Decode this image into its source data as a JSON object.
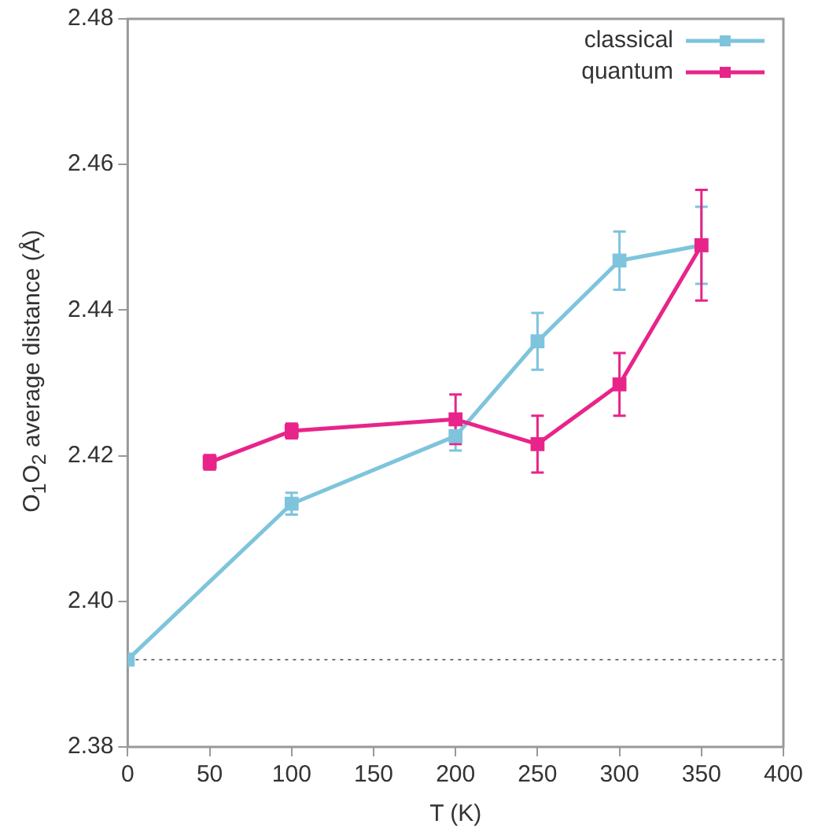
{
  "chart_data": {
    "type": "line",
    "xlabel": "T (K)",
    "ylabel": "O$_{1}$O$_{2}$ average distance (Å)",
    "xlim": [
      0,
      400
    ],
    "xticks": [
      0,
      50,
      100,
      150,
      200,
      250,
      300,
      350,
      400
    ],
    "ylim": [
      2.38,
      2.48
    ],
    "yticks": [
      {
        "value": 2.38,
        "label": "2.38"
      },
      {
        "value": 2.4,
        "label": "2.40"
      },
      {
        "value": 2.42,
        "label": "2.42"
      },
      {
        "value": 2.44,
        "label": "2.44"
      },
      {
        "value": 2.46,
        "label": "2.46"
      },
      {
        "value": 2.48,
        "label": "2.48"
      }
    ],
    "grid": false,
    "legend": "top right",
    "marker": "square",
    "ref_lines": [
      {
        "axis": "y",
        "value": 2.392,
        "color": "#777777",
        "line_style": "dotted"
      }
    ],
    "series": [
      {
        "name": "classical",
        "color": "#7ec4dc",
        "x": [
          0,
          100,
          200,
          250,
          300,
          350
        ],
        "values": [
          2.392,
          2.4134,
          2.4227,
          2.4357,
          2.4468,
          2.4489
        ],
        "errors": [
          null,
          0.0015,
          0.002,
          0.0039,
          0.004,
          0.0053
        ]
      },
      {
        "name": "quantum",
        "color": "#e8248a",
        "x": [
          50,
          100,
          200,
          250,
          300,
          350
        ],
        "values": [
          2.4191,
          2.4234,
          2.425,
          2.4216,
          2.4298,
          2.4489
        ],
        "errors": [
          0.001,
          0.001,
          0.0034,
          0.0039,
          0.0043,
          0.0076
        ]
      }
    ]
  }
}
